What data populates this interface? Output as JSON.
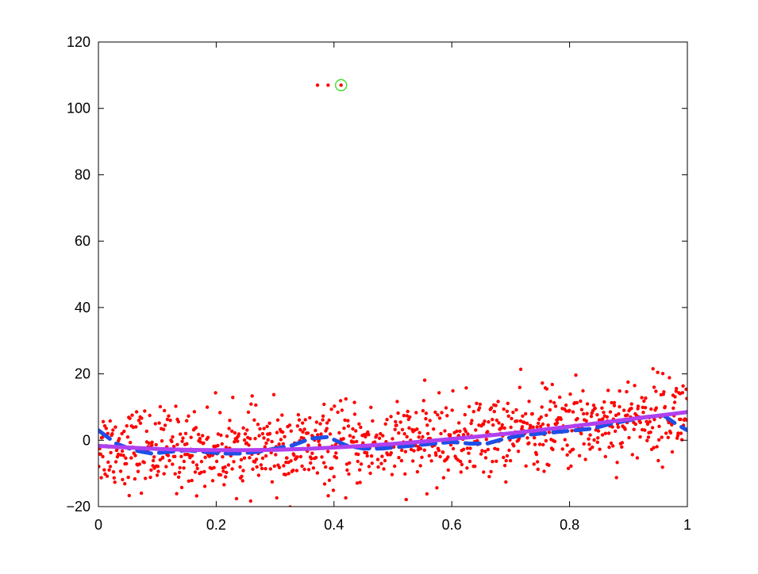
{
  "chart_data": {
    "type": "scatter",
    "title": "",
    "xlabel": "",
    "ylabel": "",
    "xlim": [
      0,
      1
    ],
    "ylim": [
      -20,
      120
    ],
    "x_ticks": [
      0,
      0.2,
      0.4,
      0.6,
      0.8,
      1
    ],
    "x_tick_labels": [
      "0",
      "0.2",
      "0.4",
      "0.6",
      "0.8",
      "1"
    ],
    "y_ticks": [
      -20,
      0,
      20,
      40,
      60,
      80,
      100,
      120
    ],
    "y_tick_labels": [
      "−20",
      "0",
      "20",
      "40",
      "60",
      "80",
      "100",
      "120"
    ],
    "grid": false,
    "legend": "none",
    "scatter_points": {
      "color": "#ff0000",
      "count": 1000,
      "description_of_distribution": "noisy samples around a smooth quadratic trend",
      "noise_std": 6
    },
    "outliers": [
      {
        "x": 0.372,
        "y": 107
      },
      {
        "x": 0.39,
        "y": 107
      },
      {
        "x": 0.412,
        "y": 107
      }
    ],
    "highlighted_point": {
      "x": 0.412,
      "y": 107,
      "marker": "circle",
      "color": "#33dd22"
    },
    "series": [
      {
        "style": "dashed",
        "color": "#1f4fe6",
        "x": [
          0.0,
          0.03,
          0.06,
          0.09,
          0.12,
          0.15,
          0.18,
          0.21,
          0.24,
          0.27,
          0.3,
          0.33,
          0.36,
          0.39,
          0.42,
          0.45,
          0.48,
          0.51,
          0.54,
          0.57,
          0.6,
          0.63,
          0.66,
          0.69,
          0.72,
          0.75,
          0.78,
          0.81,
          0.84,
          0.87,
          0.9,
          0.93,
          0.96,
          0.98,
          1.0
        ],
        "y": [
          3,
          -1,
          -3,
          -4,
          -3.5,
          -3,
          -3.5,
          -4,
          -4,
          -3.5,
          -2.5,
          -1.5,
          0.5,
          1,
          -1.5,
          -2.5,
          -2.5,
          -2,
          -1.5,
          -1,
          -0.5,
          -1,
          -1,
          0.5,
          1.5,
          2,
          2.5,
          3,
          3.5,
          5,
          6,
          7,
          7.5,
          5,
          3
        ]
      },
      {
        "style": "solid",
        "color": "#b040f0",
        "x": [
          0.0,
          0.05,
          0.1,
          0.15,
          0.2,
          0.25,
          0.3,
          0.35,
          0.4,
          0.45,
          0.5,
          0.55,
          0.6,
          0.65,
          0.7,
          0.75,
          0.8,
          0.85,
          0.9,
          0.95,
          1.0
        ],
        "y": [
          -1.7,
          -2.2,
          -2.6,
          -2.9,
          -3.0,
          -3.0,
          -2.9,
          -2.6,
          -2.2,
          -1.7,
          -1.1,
          -0.4,
          0.4,
          1.2,
          2.1,
          3.1,
          4.1,
          5.2,
          6.3,
          7.4,
          8.5
        ]
      }
    ]
  }
}
